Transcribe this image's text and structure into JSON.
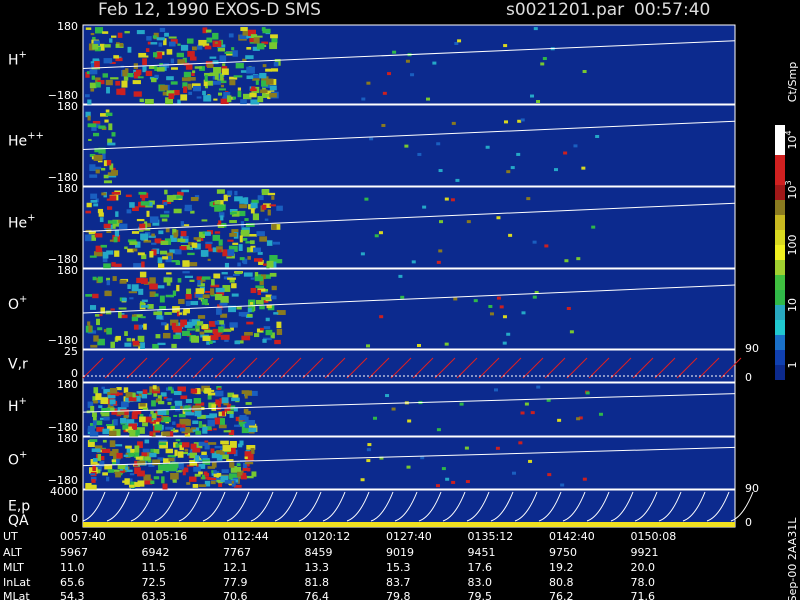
{
  "header": {
    "title": "Feb 12, 1990   EXOS-D SMS",
    "file": "s0021201.par",
    "time": "00:57:40"
  },
  "panels": [
    {
      "label": "H",
      "sup": "+",
      "ticks": [
        "180",
        "−180"
      ]
    },
    {
      "label": "He",
      "sup": "++",
      "ticks": [
        "180",
        "−180"
      ]
    },
    {
      "label": "He",
      "sup": "+",
      "ticks": [
        "180",
        "−180"
      ]
    },
    {
      "label": "O",
      "sup": "+",
      "ticks": [
        "180",
        "−180"
      ]
    },
    {
      "label": "V,r",
      "ticks": [
        "25",
        "0"
      ],
      "right_ticks": [
        "90",
        "0"
      ]
    },
    {
      "label": "H",
      "sup": "+",
      "ticks": [
        "180",
        "−180"
      ]
    },
    {
      "label": "O",
      "sup": "+",
      "ticks": [
        "180",
        "−180"
      ]
    },
    {
      "label": "E,p",
      "label2": "QA",
      "ticks": [
        "4000",
        "0"
      ],
      "right_ticks": [
        "90",
        "0"
      ]
    }
  ],
  "colorbar": {
    "label": "Ct/Smp",
    "ticks": [
      {
        "base": "10",
        "exp": "4"
      },
      {
        "base": "10",
        "exp": "3"
      },
      {
        "base": "100"
      },
      {
        "base": "10"
      },
      {
        "base": "1"
      }
    ]
  },
  "table": {
    "rows": [
      [
        "UT",
        "0057:40",
        "0105:16",
        "0112:44",
        "0120:12",
        "0127:40",
        "0135:12",
        "0142:40",
        "0150:08"
      ],
      [
        "ALT",
        "5967",
        "6942",
        "7767",
        "8459",
        "9019",
        "9451",
        "9750",
        "9921"
      ],
      [
        "MLT",
        "11.0",
        "11.5",
        "12.1",
        "13.3",
        "15.3",
        "17.6",
        "19.2",
        "20.0"
      ],
      [
        "InLat",
        "65.6",
        "72.5",
        "77.9",
        "81.8",
        "83.7",
        "83.0",
        "80.8",
        "78.0"
      ],
      [
        "MLat",
        "54.3",
        "63.3",
        "70.6",
        "76.4",
        "79.8",
        "79.5",
        "76.2",
        "71.6"
      ]
    ]
  },
  "footer": "Sep-00 2AA31L"
}
